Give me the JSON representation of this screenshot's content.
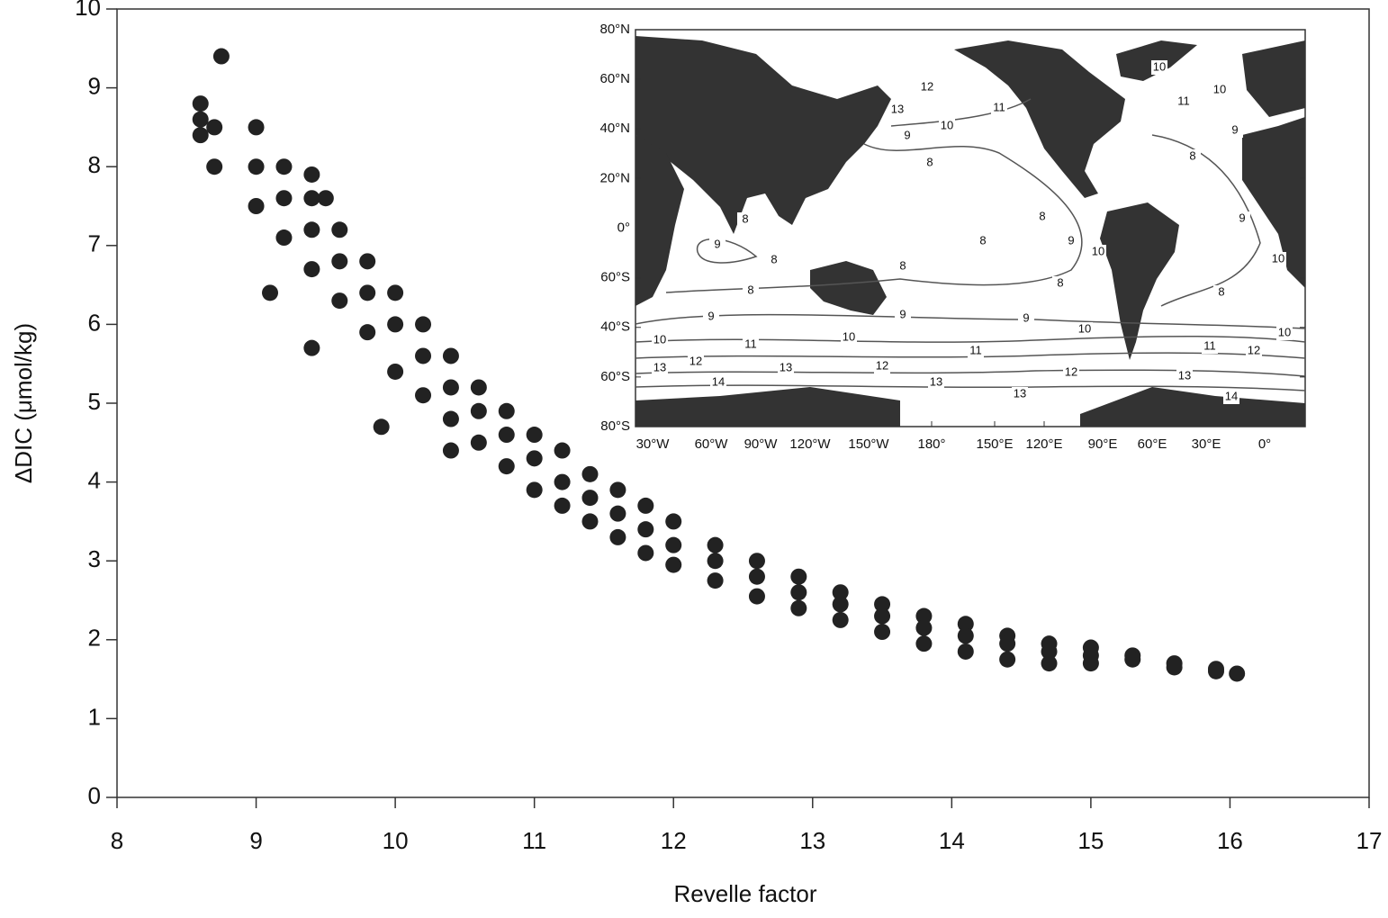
{
  "chart_data": {
    "type": "scatter",
    "x_label": "Revelle factor",
    "y_label": "ΔDIC (μmol/kg)",
    "xlim": [
      8,
      17
    ],
    "xticks": [
      8,
      9,
      10,
      11,
      12,
      13,
      14,
      15,
      16,
      17
    ],
    "ylim": [
      0,
      10
    ],
    "yticks": [
      0,
      1,
      2,
      3,
      4,
      5,
      6,
      7,
      8,
      9,
      10
    ],
    "color": "#222222",
    "x": [
      8.6,
      8.6,
      8.6,
      8.75,
      8.7,
      8.7,
      9.0,
      9.0,
      9.0,
      9.2,
      9.2,
      9.2,
      9.4,
      9.4,
      9.4,
      9.6,
      9.6,
      9.6,
      9.8,
      9.8,
      9.8,
      10.0,
      10.0,
      10.0,
      10.2,
      10.2,
      10.2,
      10.4,
      10.4,
      10.4,
      10.6,
      10.6,
      10.6,
      10.8,
      10.8,
      10.8,
      11.0,
      11.0,
      11.0,
      11.2,
      11.2,
      11.2,
      11.4,
      11.4,
      11.4,
      11.6,
      11.6,
      11.6,
      11.8,
      11.8,
      11.8,
      12.0,
      12.0,
      12.0,
      12.3,
      12.3,
      12.3,
      12.6,
      12.6,
      12.6,
      12.9,
      12.9,
      12.9,
      13.2,
      13.2,
      13.2,
      13.5,
      13.5,
      13.5,
      13.8,
      13.8,
      13.8,
      14.1,
      14.1,
      14.1,
      14.4,
      14.4,
      14.4,
      14.7,
      14.7,
      14.7,
      15.0,
      15.0,
      15.0,
      15.3,
      15.3,
      15.6,
      15.6,
      15.9,
      15.9,
      16.05,
      9.4,
      9.5,
      9.1,
      9.4,
      9.9,
      10.4
    ],
    "y": [
      8.8,
      8.6,
      8.4,
      9.4,
      8.5,
      8.0,
      8.5,
      8.0,
      7.5,
      8.0,
      7.6,
      7.1,
      7.6,
      7.2,
      6.7,
      7.2,
      6.8,
      6.3,
      6.8,
      6.4,
      5.9,
      6.4,
      6.0,
      5.4,
      6.0,
      5.6,
      5.1,
      5.6,
      5.2,
      4.8,
      5.2,
      4.9,
      4.5,
      4.9,
      4.6,
      4.2,
      4.6,
      4.3,
      3.9,
      4.4,
      4.0,
      3.7,
      4.1,
      3.8,
      3.5,
      3.9,
      3.6,
      3.3,
      3.7,
      3.4,
      3.1,
      3.5,
      3.2,
      2.95,
      3.2,
      3.0,
      2.75,
      3.0,
      2.8,
      2.55,
      2.8,
      2.6,
      2.4,
      2.6,
      2.45,
      2.25,
      2.45,
      2.3,
      2.1,
      2.3,
      2.15,
      1.95,
      2.2,
      2.05,
      1.85,
      2.05,
      1.95,
      1.75,
      1.95,
      1.85,
      1.7,
      1.9,
      1.8,
      1.7,
      1.8,
      1.75,
      1.7,
      1.65,
      1.63,
      1.6,
      1.57,
      7.9,
      7.6,
      6.4,
      5.7,
      4.7,
      4.4
    ],
    "inset": {
      "y_labels": [
        "80°N",
        "60°N",
        "40°N",
        "20°N",
        "0°",
        "60°S",
        "40°S",
        "60°S",
        "80°S"
      ],
      "x_labels": [
        "30°W",
        "60°W",
        "90°W",
        "120°W",
        "150°W",
        "180°",
        "150°E",
        "120°E",
        "90°E",
        "60°E",
        "30°E",
        "0°"
      ],
      "contour_labels": [
        12,
        10,
        11,
        10,
        13,
        11,
        10,
        9,
        9,
        8,
        8,
        8,
        8,
        9,
        9,
        8,
        8,
        9,
        10,
        10,
        8,
        8,
        8,
        8,
        9,
        9,
        9,
        10,
        10,
        10,
        10,
        11,
        11,
        11,
        12,
        13,
        12,
        13,
        12,
        12,
        13,
        13,
        14,
        13,
        14
      ]
    }
  }
}
